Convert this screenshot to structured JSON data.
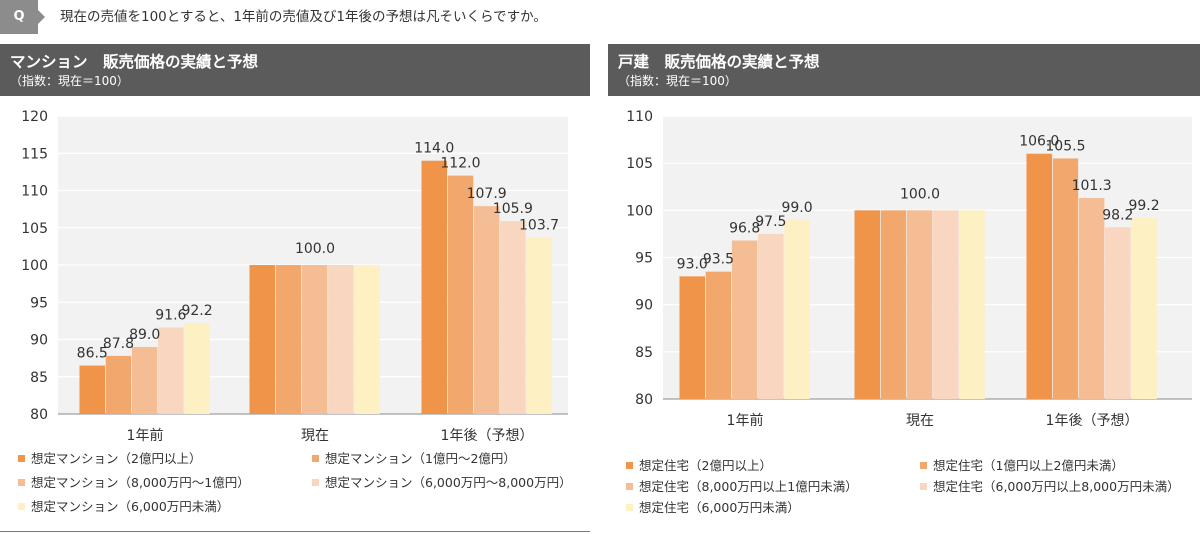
{
  "question": {
    "badge": "Q",
    "text": "現在の売値を100とすると、1年前の売値及び1年後の予想は凡そいくらですか。"
  },
  "chart_data": [
    {
      "type": "bar",
      "title": "マンション　販売価格の実績と予想",
      "subtitle": "（指数：現在＝100）",
      "categories": [
        "1年前",
        "現在",
        "1年後（予想）"
      ],
      "ylim": [
        80,
        120
      ],
      "yticks": [
        80,
        85,
        90,
        95,
        100,
        105,
        110,
        115,
        120
      ],
      "grid": true,
      "legend_position": "bottom",
      "series": [
        {
          "name": "想定マンション（2億円以上）",
          "color": "#ef9449",
          "values": [
            86.5,
            100.0,
            114.0
          ]
        },
        {
          "name": "想定マンション（1億円～2億円）",
          "color": "#f2a86d",
          "values": [
            87.8,
            100.0,
            112.0
          ]
        },
        {
          "name": "想定マンション（8,000万円～1億円）",
          "color": "#f5bd93",
          "values": [
            89.0,
            100.0,
            107.9
          ]
        },
        {
          "name": "想定マンション（6,000万円～8,000万円）",
          "color": "#f8d6bf",
          "values": [
            91.6,
            100.0,
            105.9
          ]
        },
        {
          "name": "想定マンション（6,000万円未満）",
          "color": "#fdf0c2",
          "values": [
            92.2,
            100.0,
            103.7
          ]
        }
      ],
      "data_labels": [
        [
          "86.5",
          "87.8",
          "89.0",
          "91.6",
          "92.2"
        ],
        [
          "100.0"
        ],
        [
          "114.0",
          "112.0",
          "107.9",
          "105.9",
          "103.7"
        ]
      ]
    },
    {
      "type": "bar",
      "title": "戸建　販売価格の実績と予想",
      "subtitle": "（指数：現在＝100）",
      "categories": [
        "1年前",
        "現在",
        "1年後（予想）"
      ],
      "ylim": [
        80,
        110
      ],
      "yticks": [
        80,
        85,
        90,
        95,
        100,
        105,
        110
      ],
      "grid": true,
      "legend_position": "bottom",
      "series": [
        {
          "name": "想定住宅（2億円以上）",
          "color": "#ef9449",
          "values": [
            93.0,
            100.0,
            106.0
          ]
        },
        {
          "name": "想定住宅（1億円以上2億円未満）",
          "color": "#f2a86d",
          "values": [
            93.5,
            100.0,
            105.5
          ]
        },
        {
          "name": "想定住宅（8,000万円以上1億円未満）",
          "color": "#f5bd93",
          "values": [
            96.8,
            100.0,
            101.3
          ]
        },
        {
          "name": "想定住宅（6,000万円以上8,000万円未満）",
          "color": "#f8d6bf",
          "values": [
            97.5,
            100.0,
            98.2
          ]
        },
        {
          "name": "想定住宅（6,000万円未満）",
          "color": "#fdf0c2",
          "values": [
            99.0,
            100.0,
            99.2
          ]
        }
      ],
      "data_labels": [
        [
          "93.0",
          "93.5",
          "96.8",
          "97.5",
          "99.0"
        ],
        [
          "100.0"
        ],
        [
          "106.0",
          "105.5",
          "101.3",
          "98.2",
          "99.2"
        ]
      ]
    }
  ]
}
